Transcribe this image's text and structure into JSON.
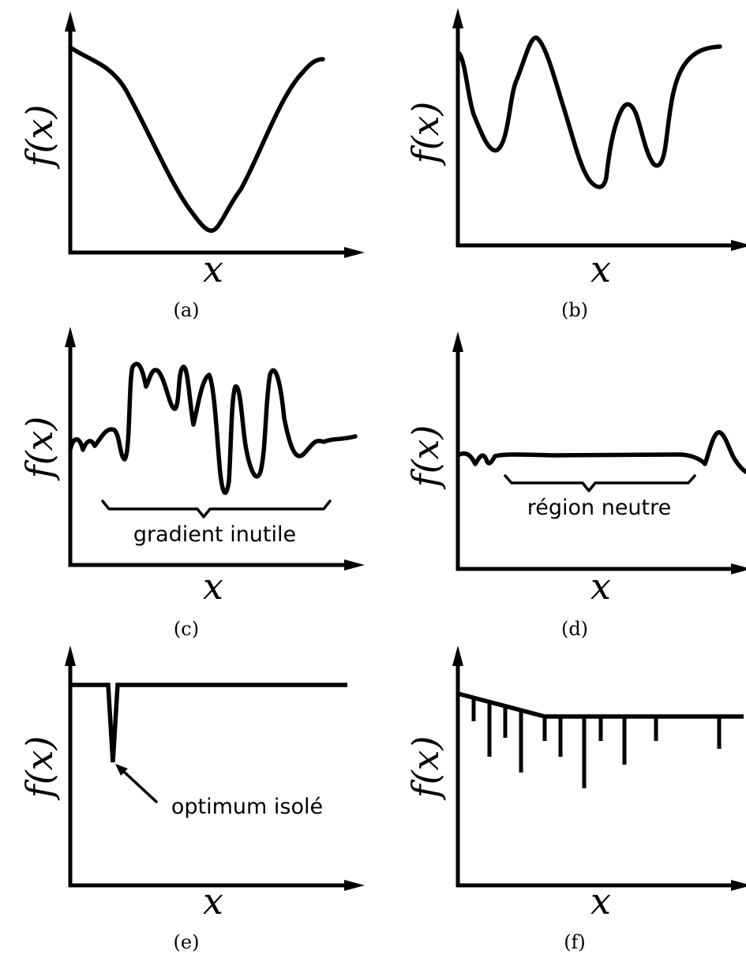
{
  "panels": [
    {
      "id": "a",
      "caption": "(a)",
      "xlabel": "x",
      "ylabel": "f(x)",
      "annotation": ""
    },
    {
      "id": "b",
      "caption": "(b)",
      "xlabel": "x",
      "ylabel": "f(x)",
      "annotation": ""
    },
    {
      "id": "c",
      "caption": "(c)",
      "xlabel": "x",
      "ylabel": "f(x)",
      "annotation": "gradient inutile"
    },
    {
      "id": "d",
      "caption": "(d)",
      "xlabel": "x",
      "ylabel": "f(x)",
      "annotation": "région neutre"
    },
    {
      "id": "e",
      "caption": "(e)",
      "xlabel": "x",
      "ylabel": "f(x)",
      "annotation": "optimum isolé"
    },
    {
      "id": "f",
      "caption": "(f)",
      "xlabel": "x",
      "ylabel": "f(x)",
      "annotation": ""
    }
  ]
}
